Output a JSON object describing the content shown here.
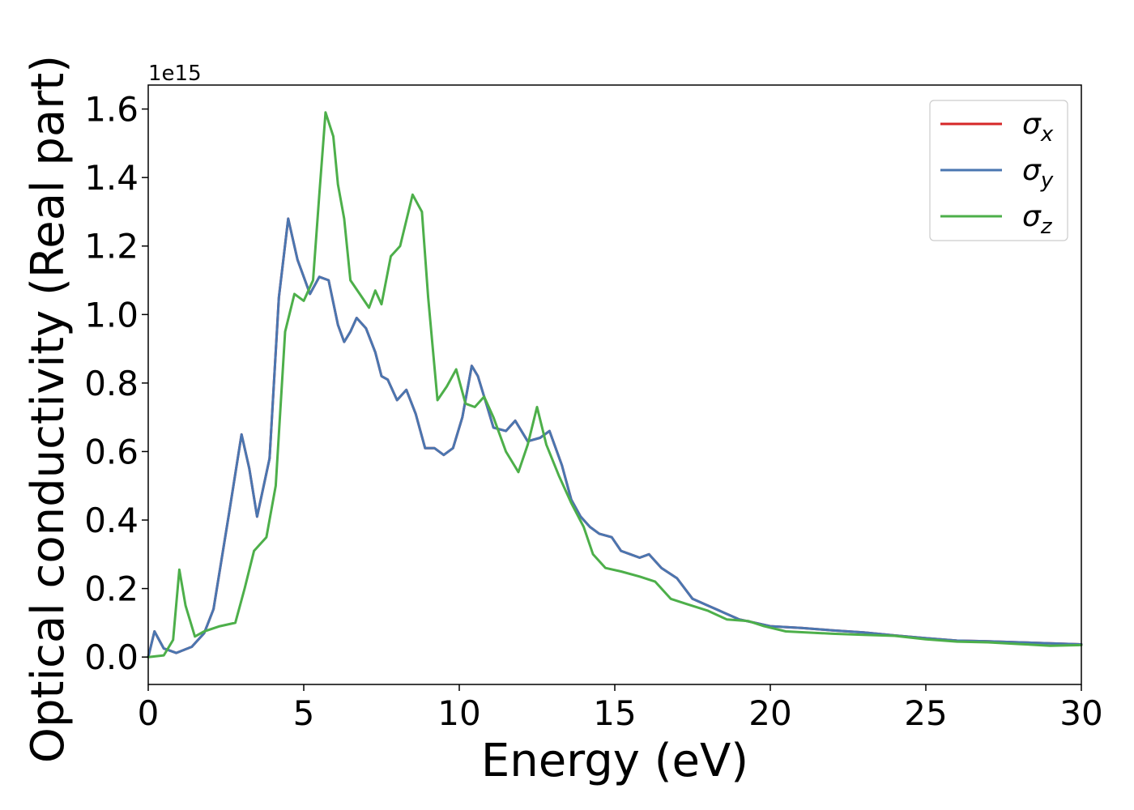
{
  "chart_data": {
    "type": "line",
    "title": "",
    "xlabel": "Energy (eV)",
    "ylabel": "Optical conductivity (Real part)",
    "y_offset_label": "1e15",
    "xlim": [
      0,
      30
    ],
    "ylim": [
      -0.08,
      1.67
    ],
    "x_ticks": [
      "0",
      "5",
      "10",
      "15",
      "20",
      "25",
      "30"
    ],
    "y_ticks": [
      "0.0",
      "0.2",
      "0.4",
      "0.6",
      "0.8",
      "1.0",
      "1.2",
      "1.4",
      "1.6"
    ],
    "grid": false,
    "legend_position": "top-right",
    "series": [
      {
        "name": "σx",
        "sub": "x",
        "color": "#d62728",
        "points": [
          [
            0,
            0
          ],
          [
            0.2,
            0.075
          ],
          [
            0.5,
            0.025
          ],
          [
            0.9,
            0.012
          ],
          [
            1.4,
            0.03
          ],
          [
            1.8,
            0.07
          ],
          [
            2.1,
            0.14
          ],
          [
            2.6,
            0.42
          ],
          [
            3.0,
            0.65
          ],
          [
            3.25,
            0.55
          ],
          [
            3.5,
            0.41
          ],
          [
            3.9,
            0.58
          ],
          [
            4.2,
            1.05
          ],
          [
            4.5,
            1.28
          ],
          [
            4.8,
            1.16
          ],
          [
            5.2,
            1.06
          ],
          [
            5.5,
            1.11
          ],
          [
            5.8,
            1.1
          ],
          [
            6.1,
            0.97
          ],
          [
            6.3,
            0.92
          ],
          [
            6.5,
            0.95
          ],
          [
            6.7,
            0.99
          ],
          [
            7.0,
            0.96
          ],
          [
            7.3,
            0.89
          ],
          [
            7.5,
            0.82
          ],
          [
            7.7,
            0.81
          ],
          [
            8.0,
            0.75
          ],
          [
            8.3,
            0.78
          ],
          [
            8.6,
            0.71
          ],
          [
            8.9,
            0.61
          ],
          [
            9.2,
            0.61
          ],
          [
            9.5,
            0.59
          ],
          [
            9.8,
            0.61
          ],
          [
            10.1,
            0.7
          ],
          [
            10.4,
            0.85
          ],
          [
            10.6,
            0.82
          ],
          [
            10.9,
            0.73
          ],
          [
            11.1,
            0.67
          ],
          [
            11.5,
            0.66
          ],
          [
            11.8,
            0.69
          ],
          [
            12.2,
            0.63
          ],
          [
            12.6,
            0.64
          ],
          [
            12.9,
            0.66
          ],
          [
            13.3,
            0.56
          ],
          [
            13.6,
            0.46
          ],
          [
            13.9,
            0.41
          ],
          [
            14.2,
            0.38
          ],
          [
            14.5,
            0.36
          ],
          [
            14.9,
            0.35
          ],
          [
            15.2,
            0.31
          ],
          [
            15.5,
            0.3
          ],
          [
            15.8,
            0.29
          ],
          [
            16.1,
            0.3
          ],
          [
            16.5,
            0.26
          ],
          [
            17.0,
            0.23
          ],
          [
            17.5,
            0.17
          ],
          [
            18.0,
            0.15
          ],
          [
            18.5,
            0.13
          ],
          [
            19.0,
            0.11
          ],
          [
            19.5,
            0.1
          ],
          [
            20.0,
            0.09
          ],
          [
            21,
            0.085
          ],
          [
            22,
            0.078
          ],
          [
            23,
            0.072
          ],
          [
            24,
            0.063
          ],
          [
            25,
            0.055
          ],
          [
            26,
            0.048
          ],
          [
            27,
            0.046
          ],
          [
            28,
            0.043
          ],
          [
            29,
            0.04
          ],
          [
            30,
            0.037
          ]
        ]
      },
      {
        "name": "σy",
        "sub": "y",
        "color": "#4a76b0",
        "points": [
          [
            0,
            0
          ],
          [
            0.2,
            0.075
          ],
          [
            0.5,
            0.025
          ],
          [
            0.9,
            0.012
          ],
          [
            1.4,
            0.03
          ],
          [
            1.8,
            0.07
          ],
          [
            2.1,
            0.14
          ],
          [
            2.6,
            0.42
          ],
          [
            3.0,
            0.65
          ],
          [
            3.25,
            0.55
          ],
          [
            3.5,
            0.41
          ],
          [
            3.9,
            0.58
          ],
          [
            4.2,
            1.05
          ],
          [
            4.5,
            1.28
          ],
          [
            4.8,
            1.16
          ],
          [
            5.2,
            1.06
          ],
          [
            5.5,
            1.11
          ],
          [
            5.8,
            1.1
          ],
          [
            6.1,
            0.97
          ],
          [
            6.3,
            0.92
          ],
          [
            6.5,
            0.95
          ],
          [
            6.7,
            0.99
          ],
          [
            7.0,
            0.96
          ],
          [
            7.3,
            0.89
          ],
          [
            7.5,
            0.82
          ],
          [
            7.7,
            0.81
          ],
          [
            8.0,
            0.75
          ],
          [
            8.3,
            0.78
          ],
          [
            8.6,
            0.71
          ],
          [
            8.9,
            0.61
          ],
          [
            9.2,
            0.61
          ],
          [
            9.5,
            0.59
          ],
          [
            9.8,
            0.61
          ],
          [
            10.1,
            0.7
          ],
          [
            10.4,
            0.85
          ],
          [
            10.6,
            0.82
          ],
          [
            10.9,
            0.73
          ],
          [
            11.1,
            0.67
          ],
          [
            11.5,
            0.66
          ],
          [
            11.8,
            0.69
          ],
          [
            12.2,
            0.63
          ],
          [
            12.6,
            0.64
          ],
          [
            12.9,
            0.66
          ],
          [
            13.3,
            0.56
          ],
          [
            13.6,
            0.46
          ],
          [
            13.9,
            0.41
          ],
          [
            14.2,
            0.38
          ],
          [
            14.5,
            0.36
          ],
          [
            14.9,
            0.35
          ],
          [
            15.2,
            0.31
          ],
          [
            15.5,
            0.3
          ],
          [
            15.8,
            0.29
          ],
          [
            16.1,
            0.3
          ],
          [
            16.5,
            0.26
          ],
          [
            17.0,
            0.23
          ],
          [
            17.5,
            0.17
          ],
          [
            18.0,
            0.15
          ],
          [
            18.5,
            0.13
          ],
          [
            19.0,
            0.11
          ],
          [
            19.5,
            0.1
          ],
          [
            20.0,
            0.09
          ],
          [
            21,
            0.085
          ],
          [
            22,
            0.078
          ],
          [
            23,
            0.072
          ],
          [
            24,
            0.063
          ],
          [
            25,
            0.055
          ],
          [
            26,
            0.048
          ],
          [
            27,
            0.046
          ],
          [
            28,
            0.043
          ],
          [
            29,
            0.04
          ],
          [
            30,
            0.037
          ]
        ]
      },
      {
        "name": "σz",
        "sub": "z",
        "color": "#4daf4a",
        "points": [
          [
            0,
            0
          ],
          [
            0.5,
            0.005
          ],
          [
            0.8,
            0.05
          ],
          [
            1.0,
            0.255
          ],
          [
            1.2,
            0.15
          ],
          [
            1.5,
            0.06
          ],
          [
            1.8,
            0.075
          ],
          [
            2.3,
            0.09
          ],
          [
            2.8,
            0.1
          ],
          [
            3.1,
            0.2
          ],
          [
            3.4,
            0.31
          ],
          [
            3.8,
            0.35
          ],
          [
            4.1,
            0.5
          ],
          [
            4.4,
            0.95
          ],
          [
            4.7,
            1.06
          ],
          [
            5.0,
            1.04
          ],
          [
            5.3,
            1.1
          ],
          [
            5.5,
            1.35
          ],
          [
            5.7,
            1.59
          ],
          [
            5.95,
            1.52
          ],
          [
            6.1,
            1.38
          ],
          [
            6.3,
            1.28
          ],
          [
            6.5,
            1.1
          ],
          [
            6.8,
            1.06
          ],
          [
            7.1,
            1.02
          ],
          [
            7.3,
            1.07
          ],
          [
            7.5,
            1.03
          ],
          [
            7.8,
            1.17
          ],
          [
            8.1,
            1.2
          ],
          [
            8.5,
            1.35
          ],
          [
            8.8,
            1.3
          ],
          [
            9.0,
            1.05
          ],
          [
            9.3,
            0.75
          ],
          [
            9.6,
            0.79
          ],
          [
            9.9,
            0.84
          ],
          [
            10.2,
            0.74
          ],
          [
            10.5,
            0.73
          ],
          [
            10.8,
            0.76
          ],
          [
            11.1,
            0.7
          ],
          [
            11.5,
            0.6
          ],
          [
            11.9,
            0.54
          ],
          [
            12.2,
            0.62
          ],
          [
            12.5,
            0.73
          ],
          [
            12.8,
            0.62
          ],
          [
            13.2,
            0.53
          ],
          [
            13.6,
            0.45
          ],
          [
            14.0,
            0.38
          ],
          [
            14.3,
            0.3
          ],
          [
            14.7,
            0.26
          ],
          [
            15.2,
            0.25
          ],
          [
            15.8,
            0.235
          ],
          [
            16.3,
            0.22
          ],
          [
            16.8,
            0.17
          ],
          [
            17.3,
            0.155
          ],
          [
            18.0,
            0.135
          ],
          [
            18.6,
            0.11
          ],
          [
            19.3,
            0.105
          ],
          [
            19.8,
            0.09
          ],
          [
            20.5,
            0.075
          ],
          [
            22,
            0.068
          ],
          [
            23,
            0.065
          ],
          [
            24,
            0.062
          ],
          [
            25,
            0.052
          ],
          [
            26,
            0.045
          ],
          [
            27,
            0.043
          ],
          [
            28,
            0.038
          ],
          [
            29,
            0.033
          ],
          [
            30,
            0.035
          ]
        ]
      }
    ]
  }
}
